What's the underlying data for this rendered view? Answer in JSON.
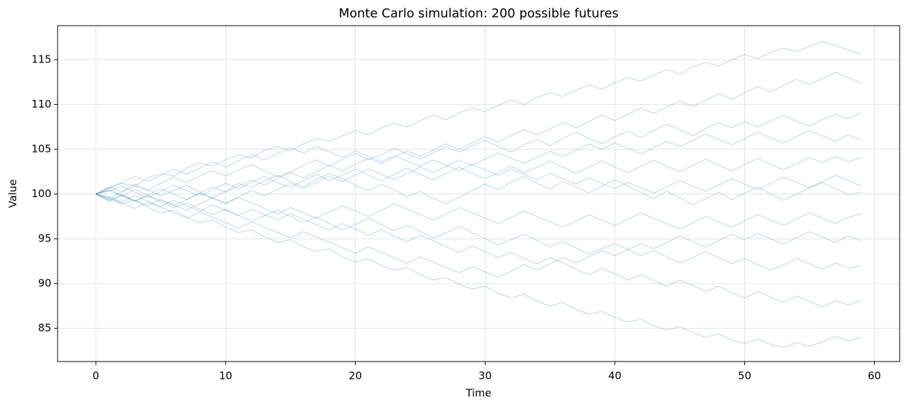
{
  "chart_data": {
    "type": "line",
    "title": "Monte Carlo simulation: 200 possible futures",
    "x_label": "Time",
    "y_label": "Value",
    "x": [
      0,
      1,
      2,
      3,
      4,
      5,
      6,
      7,
      8,
      9,
      10,
      11,
      12,
      13,
      14,
      15,
      16,
      17,
      18,
      19,
      20,
      21,
      22,
      23,
      24,
      25,
      26,
      27,
      28,
      29,
      30,
      31,
      32,
      33,
      34,
      35,
      36,
      37,
      38,
      39,
      40,
      41,
      42,
      43,
      44,
      45,
      46,
      47,
      48,
      49,
      50,
      51,
      52,
      53,
      54,
      55,
      56,
      57,
      58,
      59
    ],
    "xlim": [
      -2.95,
      61.95
    ],
    "xticks": [
      0,
      10,
      20,
      30,
      40,
      50,
      60
    ],
    "ylim": [
      81.3,
      118.8
    ],
    "yticks": [
      85,
      90,
      95,
      100,
      105,
      110,
      115
    ],
    "grid": true,
    "color": "#1f77b4",
    "line_alpha": 0.3,
    "series": [
      {
        "values": [
          100.0,
          100.6,
          101.2,
          100.9,
          101.8,
          102.3,
          102.0,
          102.9,
          103.5,
          103.1,
          103.8,
          104.4,
          104.0,
          104.9,
          105.3,
          104.8,
          105.6,
          106.2,
          105.9,
          106.5,
          107.1,
          106.6,
          107.4,
          107.9,
          107.5,
          108.2,
          108.8,
          108.3,
          109.1,
          109.6,
          109.2,
          109.9,
          110.5,
          110.0,
          110.8,
          111.3,
          110.9,
          111.6,
          112.2,
          111.7,
          112.4,
          113.0,
          112.6,
          113.3,
          113.9,
          113.4,
          114.2,
          114.7,
          114.3,
          115.0,
          115.6,
          115.1,
          115.8,
          116.3,
          115.9,
          116.5,
          117.0,
          116.6,
          116.1,
          115.6
        ]
      },
      {
        "values": [
          100.0,
          99.4,
          98.9,
          99.3,
          98.5,
          97.9,
          98.2,
          97.4,
          96.8,
          97.1,
          96.3,
          95.7,
          96.0,
          95.2,
          94.6,
          94.9,
          94.1,
          93.6,
          93.9,
          93.0,
          92.4,
          92.8,
          92.0,
          91.5,
          91.8,
          91.0,
          90.4,
          90.7,
          89.9,
          89.4,
          89.7,
          88.9,
          88.4,
          88.8,
          88.0,
          87.5,
          87.9,
          87.1,
          86.6,
          86.9,
          86.2,
          85.7,
          86.0,
          85.3,
          84.8,
          85.2,
          84.5,
          84.0,
          84.4,
          83.7,
          83.3,
          83.8,
          83.2,
          82.9,
          83.4,
          83.0,
          83.5,
          84.1,
          83.6,
          84.0
        ]
      },
      {
        "values": [
          100.0,
          100.8,
          100.3,
          101.1,
          100.5,
          99.8,
          100.4,
          101.0,
          100.2,
          99.6,
          100.3,
          101.2,
          100.7,
          101.5,
          102.1,
          101.4,
          100.8,
          101.6,
          102.3,
          101.7,
          101.0,
          100.4,
          101.1,
          100.5,
          99.7,
          100.3,
          99.5,
          98.9,
          99.6,
          100.4,
          101.1,
          100.5,
          101.3,
          102.0,
          101.2,
          100.6,
          101.4,
          100.8,
          100.1,
          100.9,
          101.6,
          100.9,
          100.2,
          99.5,
          100.3,
          99.6,
          98.8,
          99.5,
          100.2,
          99.4,
          100.1,
          100.8,
          100.0,
          99.3,
          100.0,
          100.7,
          101.3,
          100.6,
          99.9,
          100.2
        ]
      },
      {
        "values": [
          100.0,
          99.5,
          100.2,
          100.9,
          100.4,
          101.2,
          101.9,
          101.3,
          102.0,
          102.6,
          102.0,
          102.7,
          103.3,
          102.6,
          101.9,
          102.5,
          103.2,
          103.8,
          103.1,
          103.9,
          104.5,
          103.8,
          104.4,
          105.1,
          104.5,
          103.9,
          104.6,
          105.3,
          104.7,
          105.4,
          106.0,
          105.3,
          104.7,
          105.5,
          106.1,
          105.4,
          106.2,
          106.9,
          106.2,
          105.6,
          106.4,
          107.0,
          106.3,
          107.1,
          107.8,
          107.2,
          106.5,
          107.3,
          108.0,
          107.4,
          108.1,
          107.5,
          108.2,
          108.8,
          108.1,
          107.6,
          108.3,
          108.9,
          108.4,
          109.1
        ]
      },
      {
        "values": [
          100.0,
          100.5,
          99.9,
          99.2,
          99.8,
          99.1,
          98.5,
          99.0,
          98.3,
          97.7,
          98.3,
          97.6,
          97.0,
          97.6,
          98.2,
          97.5,
          96.8,
          97.4,
          96.7,
          96.0,
          96.6,
          97.3,
          96.6,
          95.9,
          96.5,
          95.8,
          95.1,
          95.7,
          96.4,
          95.7,
          95.0,
          94.3,
          94.9,
          95.5,
          94.8,
          94.1,
          94.7,
          94.0,
          93.3,
          93.9,
          94.5,
          93.8,
          93.1,
          93.7,
          93.0,
          92.3,
          92.9,
          93.6,
          92.9,
          92.2,
          92.8,
          92.1,
          91.5,
          92.1,
          92.8,
          92.2,
          91.6,
          92.3,
          91.7,
          92.0
        ]
      },
      {
        "values": [
          100.0,
          100.3,
          100.9,
          100.2,
          99.6,
          100.3,
          101.0,
          100.4,
          99.8,
          100.5,
          101.2,
          100.6,
          101.3,
          102.0,
          101.3,
          100.7,
          101.5,
          102.2,
          101.5,
          102.1,
          102.8,
          102.1,
          101.5,
          102.2,
          102.9,
          102.2,
          101.6,
          102.3,
          103.0,
          102.3,
          101.7,
          102.4,
          103.1,
          102.4,
          103.0,
          103.7,
          103.0,
          102.3,
          103.0,
          103.7,
          103.0,
          102.4,
          103.1,
          103.8,
          103.1,
          102.5,
          103.2,
          103.9,
          103.2,
          102.6,
          103.3,
          104.0,
          103.3,
          102.7,
          103.4,
          104.1,
          103.5,
          104.2,
          103.6,
          104.1
        ]
      },
      {
        "values": [
          100.0,
          99.7,
          99.1,
          99.8,
          99.2,
          98.6,
          99.3,
          98.7,
          98.1,
          98.8,
          98.2,
          97.6,
          98.3,
          97.7,
          97.1,
          97.8,
          97.2,
          96.6,
          96.0,
          96.7,
          96.1,
          95.4,
          96.0,
          95.3,
          94.7,
          95.4,
          94.8,
          94.1,
          93.5,
          94.2,
          93.6,
          92.9,
          93.5,
          92.8,
          92.2,
          92.9,
          92.3,
          91.6,
          91.0,
          91.7,
          91.1,
          90.4,
          91.0,
          90.3,
          89.7,
          90.4,
          89.8,
          89.1,
          89.7,
          89.0,
          88.4,
          89.1,
          88.5,
          87.9,
          88.6,
          88.0,
          87.4,
          88.1,
          87.6,
          88.1
        ]
      },
      {
        "values": [
          100.0,
          99.2,
          99.8,
          100.5,
          99.9,
          99.3,
          98.7,
          99.4,
          100.1,
          99.5,
          98.9,
          99.6,
          99.0,
          98.4,
          97.8,
          98.5,
          97.9,
          97.3,
          98.0,
          98.7,
          98.1,
          97.5,
          98.2,
          98.9,
          98.3,
          97.7,
          97.1,
          97.8,
          98.5,
          97.9,
          97.3,
          96.7,
          97.4,
          98.1,
          97.5,
          96.9,
          96.3,
          97.0,
          97.7,
          97.1,
          96.5,
          97.2,
          97.9,
          97.3,
          96.7,
          96.1,
          96.8,
          97.5,
          96.9,
          96.3,
          97.0,
          97.7,
          97.1,
          96.5,
          97.2,
          97.9,
          97.3,
          96.7,
          97.4,
          97.8
        ]
      },
      {
        "values": [
          100.0,
          100.4,
          99.8,
          99.2,
          99.9,
          100.6,
          100.0,
          99.4,
          100.1,
          100.8,
          100.2,
          100.9,
          101.6,
          101.0,
          101.7,
          102.4,
          101.8,
          102.5,
          103.2,
          102.6,
          103.3,
          104.0,
          103.4,
          104.1,
          104.8,
          104.2,
          104.9,
          105.6,
          105.0,
          105.7,
          106.4,
          105.8,
          106.5,
          107.2,
          106.6,
          107.3,
          108.0,
          107.4,
          108.1,
          108.8,
          108.2,
          108.9,
          109.6,
          109.0,
          109.7,
          110.4,
          109.8,
          110.5,
          111.2,
          110.6,
          111.3,
          112.0,
          111.4,
          112.1,
          112.8,
          112.2,
          112.9,
          113.6,
          113.0,
          112.4
        ]
      },
      {
        "values": [
          100.0,
          99.6,
          99.0,
          98.4,
          99.1,
          98.5,
          97.9,
          97.3,
          98.0,
          97.4,
          96.8,
          96.2,
          96.9,
          96.3,
          95.7,
          95.1,
          95.8,
          95.2,
          94.6,
          94.0,
          93.4,
          94.1,
          93.5,
          92.9,
          92.3,
          93.0,
          92.4,
          91.8,
          91.2,
          91.9,
          91.3,
          90.7,
          91.4,
          92.1,
          91.5,
          92.2,
          92.9,
          92.3,
          93.0,
          93.7,
          93.1,
          93.8,
          94.5,
          93.9,
          94.6,
          95.3,
          94.7,
          94.1,
          94.8,
          95.5,
          94.9,
          95.6,
          95.0,
          94.4,
          95.1,
          95.8,
          95.2,
          94.6,
          95.3,
          94.8
        ]
      },
      {
        "values": [
          100.0,
          100.7,
          101.3,
          102.0,
          101.4,
          102.1,
          102.8,
          102.2,
          102.9,
          103.6,
          103.0,
          103.7,
          104.4,
          103.8,
          104.5,
          105.2,
          104.6,
          105.3,
          104.7,
          104.1,
          104.8,
          104.2,
          103.6,
          104.3,
          103.7,
          103.1,
          103.8,
          103.2,
          102.6,
          103.3,
          102.7,
          102.1,
          102.8,
          102.2,
          101.6,
          102.3,
          101.7,
          101.1,
          101.8,
          101.2,
          100.6,
          101.3,
          100.7,
          100.1,
          100.8,
          101.5,
          100.9,
          100.3,
          101.0,
          101.7,
          101.1,
          100.5,
          101.2,
          101.9,
          101.3,
          100.7,
          101.4,
          102.1,
          101.5,
          100.9
        ]
      },
      {
        "values": [
          100.0,
          99.3,
          99.9,
          99.3,
          98.7,
          99.4,
          98.8,
          98.2,
          98.9,
          99.6,
          99.0,
          99.7,
          100.4,
          99.8,
          100.5,
          101.2,
          100.6,
          101.3,
          102.0,
          101.4,
          102.1,
          102.8,
          102.2,
          101.6,
          102.3,
          103.0,
          102.4,
          103.1,
          103.8,
          103.2,
          103.9,
          104.6,
          104.0,
          103.4,
          104.1,
          104.8,
          104.2,
          104.9,
          105.6,
          105.0,
          105.7,
          105.1,
          104.5,
          105.2,
          105.9,
          105.3,
          106.0,
          106.7,
          106.1,
          105.5,
          106.2,
          106.9,
          106.3,
          105.7,
          106.4,
          107.1,
          106.5,
          105.9,
          106.6,
          106.0
        ]
      }
    ]
  }
}
